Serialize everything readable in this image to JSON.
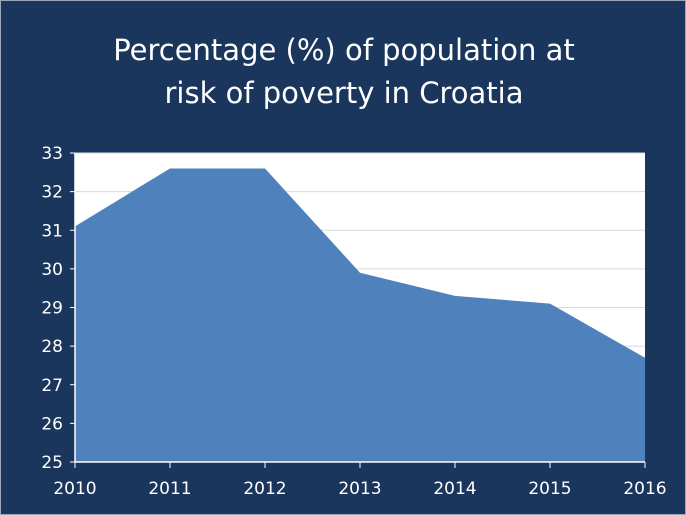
{
  "chart_data": {
    "type": "area",
    "title": "Percentage (%) of population at risk of poverty in Croatia",
    "title_lines": [
      "Percentage (%) of population at",
      "risk of poverty in Croatia"
    ],
    "xlabel": "",
    "ylabel": "",
    "x": [
      "2010",
      "2011",
      "2012",
      "2013",
      "2014",
      "2015",
      "2016"
    ],
    "series": [
      {
        "values": [
          31.1,
          32.6,
          32.6,
          29.9,
          29.3,
          29.1,
          27.7
        ]
      }
    ],
    "ylim": [
      25,
      33
    ],
    "yticks": [
      "25",
      "26",
      "27",
      "28",
      "29",
      "30",
      "31",
      "32",
      "33"
    ],
    "grid": true,
    "legend": "none",
    "colors": {
      "background": "#1b365d",
      "plot_area": "#ffffff",
      "area_fill": "#4f81bd",
      "gridline": "#d9d9d9",
      "text": "#ffffff"
    }
  }
}
